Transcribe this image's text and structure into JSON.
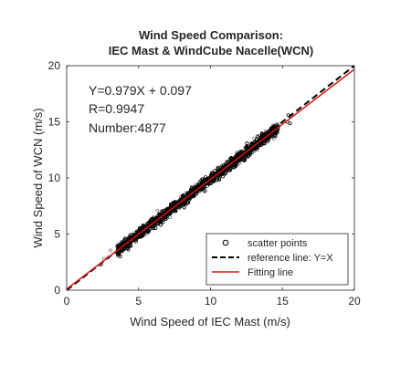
{
  "chart_data": {
    "type": "scatter",
    "title": [
      "Wind Speed Comparison:",
      "IEC Mast & WindCube Nacelle(WCN)"
    ],
    "xlabel": "Wind Speed of IEC Mast (m/s)",
    "ylabel": "Wind Speed of WCN (m/s)",
    "xlim": [
      0,
      20
    ],
    "ylim": [
      0,
      20
    ],
    "xticks": [
      0,
      5,
      10,
      15,
      20
    ],
    "yticks": [
      0,
      5,
      10,
      15,
      20
    ],
    "grid": false,
    "annotations": [
      "Y=0.979X + 0.097",
      "R=0.9947",
      "Number:4877"
    ],
    "fit": {
      "slope": 0.979,
      "intercept": 0.097
    },
    "reference": {
      "slope": 1,
      "intercept": 0
    },
    "scatter": {
      "count": 4877,
      "x_range": [
        2.2,
        15.6
      ],
      "approx_spread": 0.45
    },
    "legend": {
      "placement": "bottom-right",
      "entries": [
        {
          "label": "scatter points",
          "style": "circle-marker",
          "color": "#000000"
        },
        {
          "label": "reference line: Y=X",
          "style": "dashed-line",
          "color": "#000000"
        },
        {
          "label": "Fitting line",
          "style": "solid-line",
          "color": "#e01010"
        }
      ]
    },
    "colors": {
      "scatter": "#000000",
      "reference": "#000000",
      "fit": "#e01010"
    }
  }
}
